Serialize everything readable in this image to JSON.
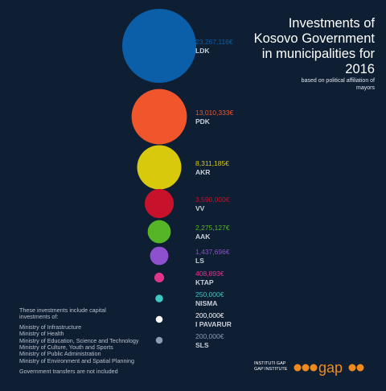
{
  "chart_data": {
    "type": "bubble",
    "title": "Investments of Kosovo Government in municipalities for 2016",
    "subtitle": "based on political affiliation of mayors",
    "categories": [
      "LDK",
      "PDK",
      "AKR",
      "VV",
      "AAK",
      "LS",
      "KTAP",
      "NISMA",
      "I PAVARUR",
      "SLS"
    ],
    "values": [
      23267116,
      13010333,
      8311185,
      3590000,
      2275127,
      1437696,
      408893,
      250000,
      200000,
      200000
    ],
    "value_labels": [
      "23,267,116€",
      "13,010,333€",
      "8,311,185€",
      "3,590,000€",
      "2,275,127€",
      "1,437,696€",
      "408,893€",
      "250,000€",
      "200,000€",
      "200,000€"
    ],
    "colors": [
      "#0b5ea8",
      "#f0552b",
      "#d8c90d",
      "#c8112b",
      "#56b527",
      "#8e50cc",
      "#e0358b",
      "#3fc8c2",
      "#ffffff",
      "#8c9cb1"
    ]
  },
  "notes": {
    "lead": "These investments include capital investments of:",
    "items": [
      "Ministry of Infrastructure",
      "Ministry of Health",
      "Ministry of Education, Science and Technology",
      "Ministry of Culture, Youth and Sports",
      "Ministry of Public Administration",
      "Ministry of Environment and Spatial Planning"
    ],
    "footnote": "Government transfers are not included"
  },
  "logo": {
    "institute": [
      "INSTITUTI GAP",
      "GAP INSTITUTE"
    ],
    "mark": "gap"
  }
}
